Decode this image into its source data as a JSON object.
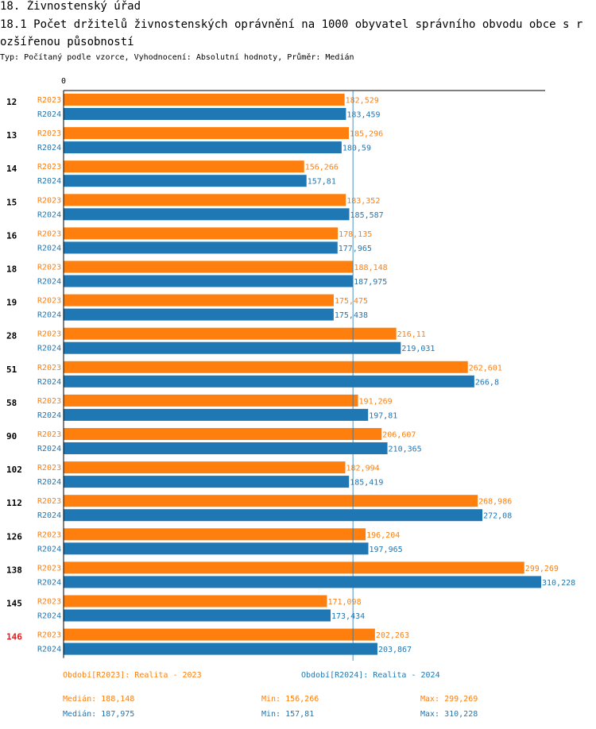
{
  "header": {
    "title": "18. Živnostenský úřad",
    "subtitle": "18.1 Počet držitelů živnostenských oprávnění na 1000 obyvatel správního obvodu obce s rozšířenou působností",
    "description": "Typ: Počítaný podle vzorce, Vyhodnocení: Absolutní hodnoty, Průměr: Medián"
  },
  "colors": {
    "r2023": "#ff7f0e",
    "r2024": "#1f77b4",
    "highlight": "#e31a1c",
    "axis": "#000000",
    "median_line": "#1f77b4"
  },
  "chart_data": {
    "type": "bar",
    "orientation": "horizontal",
    "axis_zero_label": "0",
    "xlim": [
      0,
      310.228
    ],
    "median_reference": 187.975,
    "highlight_category": "146",
    "categories": [
      "12",
      "13",
      "14",
      "15",
      "16",
      "18",
      "19",
      "28",
      "51",
      "58",
      "90",
      "102",
      "112",
      "126",
      "138",
      "145",
      "146"
    ],
    "series": [
      {
        "name": "R2023",
        "values": [
          182.529,
          185.296,
          156.266,
          183.352,
          178.135,
          188.148,
          175.475,
          216.11,
          262.601,
          191.269,
          206.607,
          182.994,
          268.986,
          196.204,
          299.269,
          171.098,
          202.263
        ],
        "labels": [
          "182,529",
          "185,296",
          "156,266",
          "183,352",
          "178,135",
          "188,148",
          "175,475",
          "216,11",
          "262,601",
          "191,269",
          "206,607",
          "182,994",
          "268,986",
          "196,204",
          "299,269",
          "171,098",
          "202,263"
        ]
      },
      {
        "name": "R2024",
        "values": [
          183.459,
          180.59,
          157.81,
          185.587,
          177.965,
          187.975,
          175.438,
          219.031,
          266.8,
          197.81,
          210.365,
          185.419,
          272.08,
          197.965,
          310.228,
          173.434,
          203.867
        ],
        "labels": [
          "183,459",
          "180,59",
          "157,81",
          "185,587",
          "177,965",
          "187,975",
          "175,438",
          "219,031",
          "266,8",
          "197,81",
          "210,365",
          "185,419",
          "272,08",
          "197,965",
          "310,228",
          "173,434",
          "203,867"
        ]
      }
    ]
  },
  "legend": {
    "r2023": "Období[R2023]: Realita - 2023",
    "r2024": "Období[R2024]: Realita - 2024"
  },
  "stats": {
    "r2023": {
      "median": "Medián: 188,148",
      "min": "Min: 156,266",
      "max": "Max: 299,269"
    },
    "r2024": {
      "median": "Medián: 187,975",
      "min": "Min: 157,81",
      "max": "Max: 310,228"
    }
  }
}
